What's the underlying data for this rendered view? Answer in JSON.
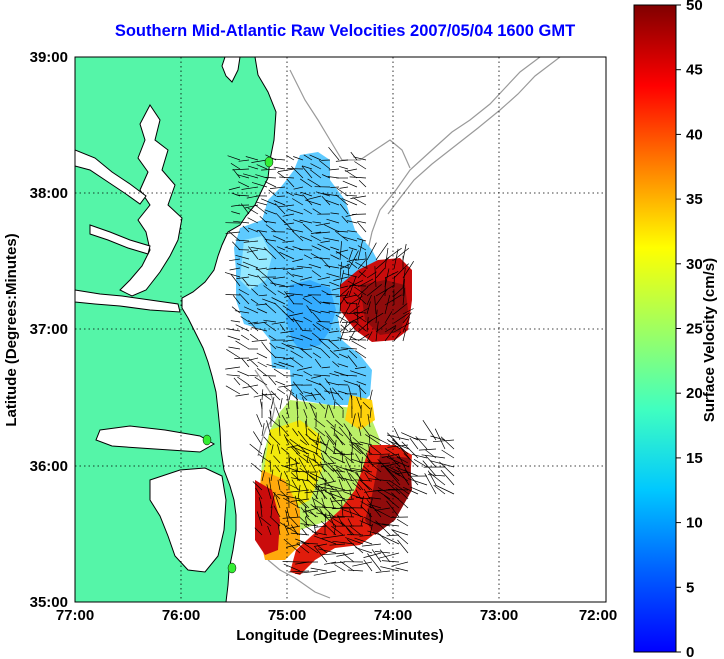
{
  "title": "Southern Mid-Atlantic Raw Velocities 2007/05/04 1600 GMT",
  "axes": {
    "xlabel": "Longitude (Degrees:Minutes)",
    "ylabel": "Latitude (Degrees:Minutes)",
    "x_ticks": [
      "77:00",
      "76:00",
      "75:00",
      "74:00",
      "73:00",
      "72:00"
    ],
    "y_ticks": [
      "39:00",
      "38:00",
      "37:00",
      "36:00",
      "35:00"
    ],
    "x_range_deg_west": [
      77,
      72
    ],
    "y_range_deg_north": [
      35,
      39
    ],
    "grid": true
  },
  "colorbar": {
    "label": "Surface Velocity (cm/s)",
    "ticks": [
      "50",
      "45",
      "40",
      "35",
      "30",
      "25",
      "20",
      "15",
      "10",
      "5",
      "0"
    ],
    "range_cm_s": [
      0,
      50
    ],
    "colormap": "jet"
  },
  "colors": {
    "land": "#55f5a8",
    "coast": "#000000",
    "bathymetry": "#9a9a9a",
    "title": "#0000ff",
    "station": "#33ee33"
  },
  "stations_lat_lon": [
    [
      38.24,
      -75.18
    ],
    [
      36.19,
      -75.76
    ],
    [
      35.33,
      -75.52
    ]
  ]
}
